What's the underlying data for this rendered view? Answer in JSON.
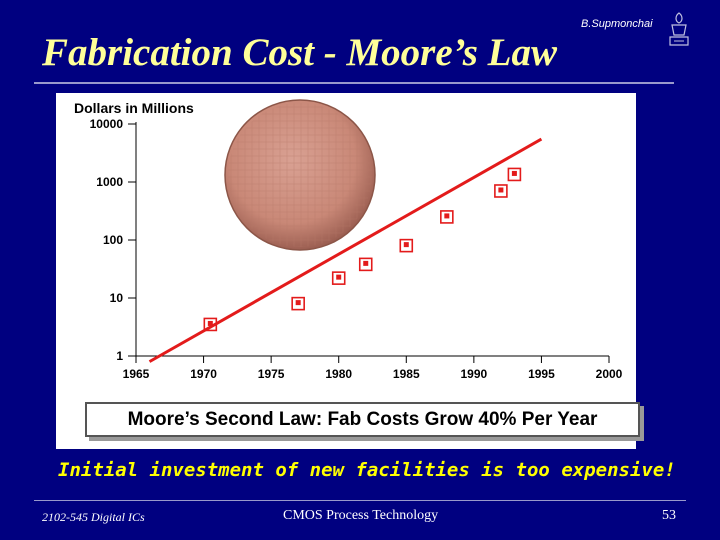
{
  "slide": {
    "title": "Fabrication Cost - Moore’s Law",
    "author": "B.Supmonchai",
    "tagline": "Initial investment of new facilities is too expensive!",
    "footer_left": "2102-545 Digital ICs",
    "footer_center": "CMOS Process Technology",
    "page_number": "53"
  },
  "colors": {
    "background": "#000080",
    "title": "#ffff99",
    "tagline": "#ffff00",
    "trend_line": "#e31b1b",
    "marker": "#e31b1b",
    "wafer": "#c98877"
  },
  "chart_data": {
    "type": "scatter",
    "title": "",
    "ylabel": "Dollars in Millions",
    "xlabel": "",
    "y_scale": "log",
    "xlim": [
      1965,
      2000
    ],
    "ylim": [
      1,
      10000
    ],
    "x_ticks": [
      "1965",
      "1970",
      "1975",
      "1980",
      "1985",
      "1990",
      "1995",
      "2000"
    ],
    "y_ticks": [
      "1",
      "10",
      "100",
      "1000",
      "10000"
    ],
    "series": [
      {
        "marker": "open-square",
        "points": [
          {
            "x": 1970.5,
            "y": 3.5
          },
          {
            "x": 1977,
            "y": 8
          },
          {
            "x": 1980,
            "y": 22
          },
          {
            "x": 1982,
            "y": 38
          },
          {
            "x": 1985,
            "y": 80
          },
          {
            "x": 1988,
            "y": 250
          },
          {
            "x": 1992,
            "y": 700
          },
          {
            "x": 1993,
            "y": 1350
          }
        ]
      }
    ],
    "trend_line": [
      {
        "x": 1966,
        "y": 0.8
      },
      {
        "x": 1995,
        "y": 5500
      }
    ],
    "annotation": "Moore’s Second Law: Fab Costs Grow 40% Per Year"
  }
}
